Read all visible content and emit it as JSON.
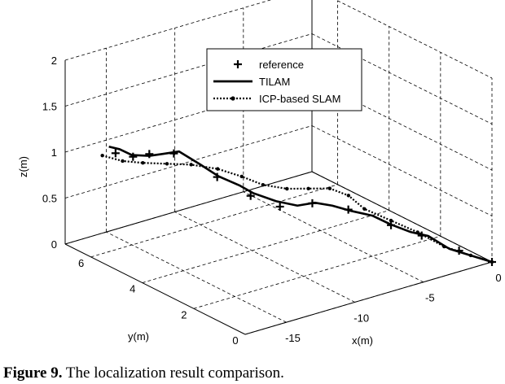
{
  "caption": {
    "label": "Figure 9.",
    "text": "The localization result comparison."
  },
  "chart_data": {
    "type": "line",
    "projection": "3d",
    "xlabel": "x(m)",
    "ylabel": "y(m)",
    "zlabel": "z(m)",
    "xlim": [
      -18,
      0
    ],
    "ylim": [
      0,
      7
    ],
    "zlim": [
      0,
      2
    ],
    "x_ticks": [
      0,
      -5,
      -10,
      -15
    ],
    "y_ticks": [
      0,
      2,
      4,
      6
    ],
    "z_ticks": [
      0,
      0.5,
      1,
      1.5,
      2
    ],
    "grid": true,
    "legend_position": "top-right",
    "series": [
      {
        "name": "reference",
        "style": "markers-plus",
        "color": "#000000",
        "points": [
          [
            -16.2,
            6.0,
            1.05
          ],
          [
            -15.3,
            5.8,
            1.0
          ],
          [
            -14.3,
            5.7,
            1.0
          ],
          [
            -12.7,
            5.6,
            0.95
          ],
          [
            -11.6,
            4.5,
            0.8
          ],
          [
            -10.1,
            4.0,
            0.6
          ],
          [
            -8.9,
            3.5,
            0.5
          ],
          [
            -7.1,
            3.2,
            0.5
          ],
          [
            -5.6,
            2.6,
            0.45
          ],
          [
            -3.8,
            1.9,
            0.3
          ],
          [
            -2.5,
            1.4,
            0.2
          ],
          [
            -0.9,
            0.8,
            0.05
          ],
          [
            0,
            0,
            0
          ]
        ]
      },
      {
        "name": "TILAM",
        "style": "solid",
        "color": "#000000",
        "points": [
          [
            -16.5,
            6.1,
            1.12
          ],
          [
            -15.9,
            6.0,
            1.08
          ],
          [
            -15.2,
            5.9,
            1.0
          ],
          [
            -14.3,
            5.7,
            0.98
          ],
          [
            -13.5,
            5.6,
            0.98
          ],
          [
            -12.7,
            5.4,
            1.0
          ],
          [
            -11.9,
            5.0,
            0.88
          ],
          [
            -11.3,
            4.6,
            0.78
          ],
          [
            -10.5,
            4.2,
            0.7
          ],
          [
            -9.9,
            4.0,
            0.62
          ],
          [
            -9.0,
            3.6,
            0.55
          ],
          [
            -8.0,
            3.3,
            0.5
          ],
          [
            -7.1,
            3.1,
            0.52
          ],
          [
            -6.4,
            2.8,
            0.5
          ],
          [
            -5.6,
            2.5,
            0.45
          ],
          [
            -4.8,
            2.1,
            0.42
          ],
          [
            -4.0,
            1.8,
            0.33
          ],
          [
            -3.1,
            1.5,
            0.25
          ],
          [
            -2.4,
            1.2,
            0.22
          ],
          [
            -1.6,
            0.8,
            0.1
          ],
          [
            -0.8,
            0.4,
            0.05
          ],
          [
            0,
            0,
            0
          ]
        ]
      },
      {
        "name": "ICP-based SLAM",
        "style": "dotted-markers",
        "color": "#000000",
        "points": [
          [
            -16.6,
            6.3,
            1.0
          ],
          [
            -15.5,
            6.1,
            0.92
          ],
          [
            -14.4,
            5.9,
            0.88
          ],
          [
            -13.2,
            5.6,
            0.86
          ],
          [
            -12.0,
            5.3,
            0.84
          ],
          [
            -11.0,
            4.8,
            0.82
          ],
          [
            -10.0,
            4.4,
            0.75
          ],
          [
            -9.2,
            4.0,
            0.68
          ],
          [
            -8.2,
            3.6,
            0.65
          ],
          [
            -7.2,
            3.3,
            0.65
          ],
          [
            -6.2,
            3.0,
            0.65
          ],
          [
            -5.4,
            2.7,
            0.58
          ],
          [
            -4.8,
            2.4,
            0.45
          ],
          [
            -3.8,
            1.9,
            0.35
          ],
          [
            -2.8,
            1.4,
            0.25
          ],
          [
            -1.8,
            0.9,
            0.12
          ],
          [
            -0.8,
            0.4,
            0.05
          ],
          [
            0,
            0,
            0
          ]
        ]
      }
    ]
  }
}
